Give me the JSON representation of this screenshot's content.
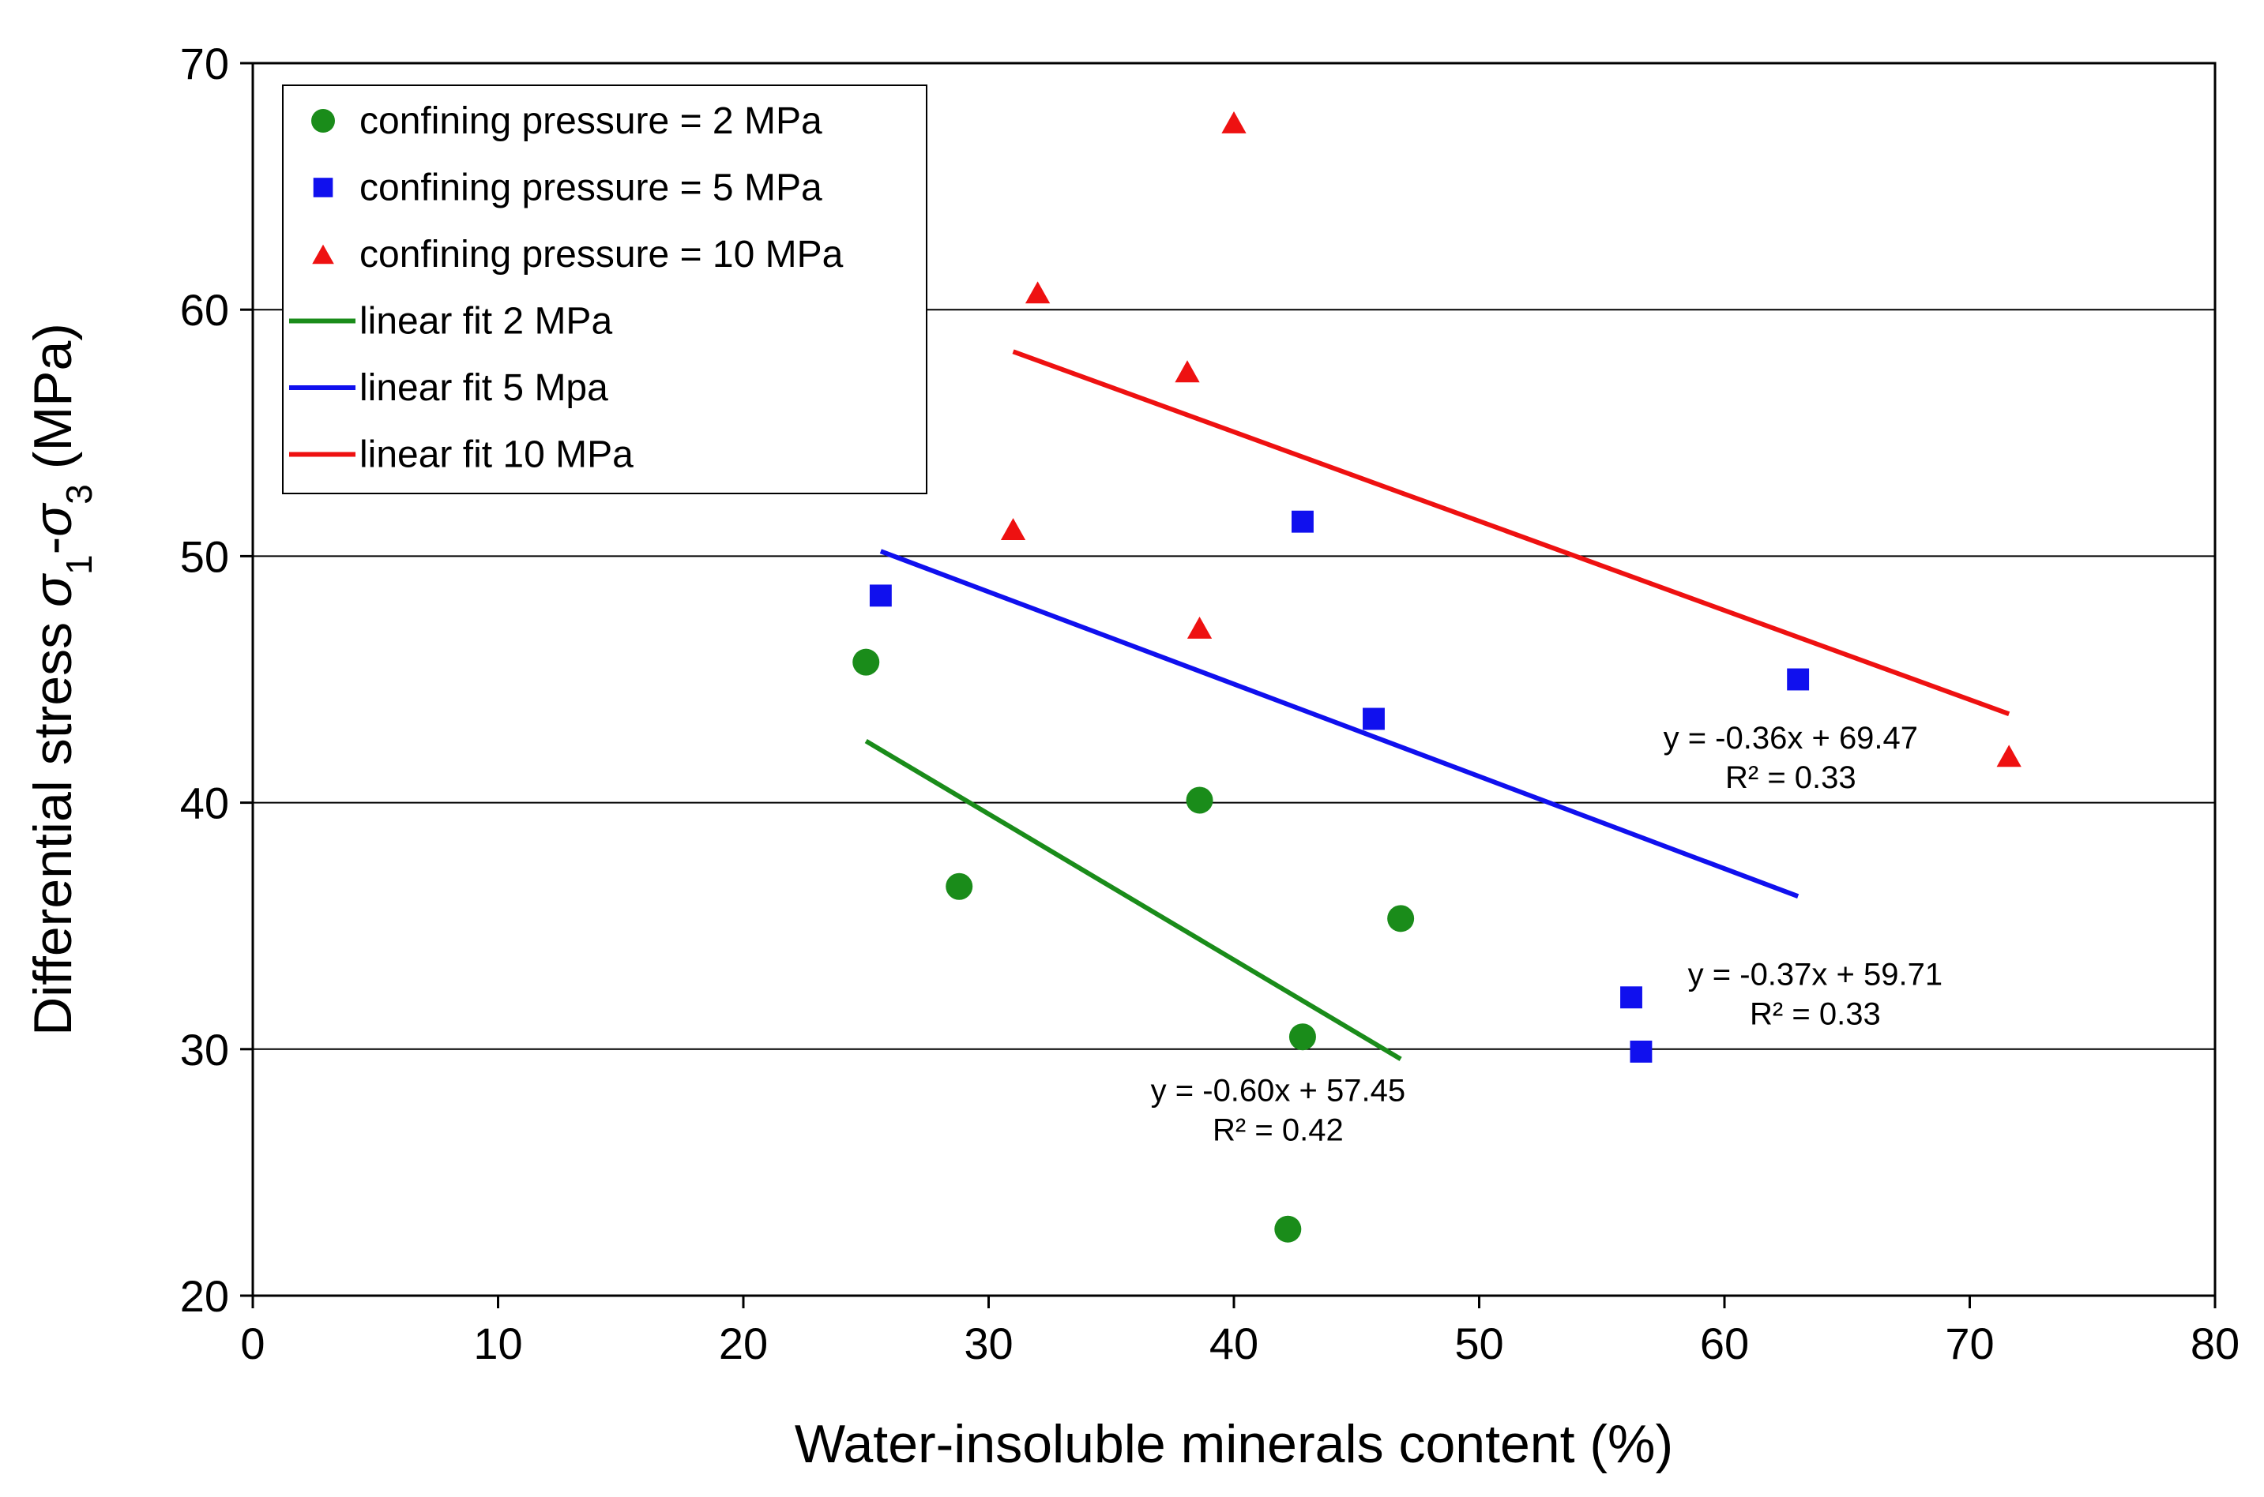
{
  "chart_data": {
    "type": "scatter",
    "title": "",
    "xlabel": "Water-insoluble minerals content (%)",
    "ylabel": "Differential stress σ1-σ3 (MPa)",
    "ylabel_parts": {
      "pre": "Differential stress ",
      "sigma": "σ",
      "sub1": "1",
      "dash": "-",
      "sub3": "3",
      "post": " (MPa)"
    },
    "xlim": [
      0,
      80
    ],
    "ylim": [
      20,
      70
    ],
    "xticks": [
      0,
      10,
      20,
      30,
      40,
      50,
      60,
      70,
      80
    ],
    "yticks": [
      20,
      30,
      40,
      50,
      60,
      70
    ],
    "grid": {
      "horizontal": true,
      "vertical": false
    },
    "legend_position": "top-left",
    "series": [
      {
        "name": "confining pressure = 2 MPa",
        "marker": "circle",
        "color": "#1a8c1a",
        "points": [
          {
            "x": 25.0,
            "y": 45.7
          },
          {
            "x": 28.8,
            "y": 36.6
          },
          {
            "x": 38.6,
            "y": 40.1
          },
          {
            "x": 42.8,
            "y": 30.5
          },
          {
            "x": 46.8,
            "y": 35.3
          },
          {
            "x": 42.2,
            "y": 22.7
          }
        ]
      },
      {
        "name": "confining pressure = 5 MPa",
        "marker": "square",
        "color": "#1010ee",
        "points": [
          {
            "x": 25.6,
            "y": 48.4
          },
          {
            "x": 42.8,
            "y": 51.4
          },
          {
            "x": 45.7,
            "y": 43.4
          },
          {
            "x": 63.0,
            "y": 45.0
          },
          {
            "x": 56.2,
            "y": 32.1
          },
          {
            "x": 56.6,
            "y": 29.9
          }
        ]
      },
      {
        "name": "confining pressure = 10 MPa",
        "marker": "triangle",
        "color": "#ee1111",
        "points": [
          {
            "x": 31.0,
            "y": 51.1
          },
          {
            "x": 32.0,
            "y": 60.7
          },
          {
            "x": 38.1,
            "y": 57.5
          },
          {
            "x": 38.6,
            "y": 47.1
          },
          {
            "x": 40.0,
            "y": 67.6
          },
          {
            "x": 71.6,
            "y": 41.9
          }
        ]
      }
    ],
    "fits": [
      {
        "name": "linear fit 2 MPa",
        "color": "#1a8c1a",
        "x_range": [
          25.0,
          46.8
        ],
        "y_range": [
          42.5,
          29.6
        ],
        "equation": "y = -0.60x + 57.45",
        "r2": "R² = 0.42",
        "label_at": {
          "x": 41.8,
          "y": 27.9
        }
      },
      {
        "name": "linear fit 5 Mpa",
        "color": "#1010ee",
        "x_range": [
          25.6,
          63.0
        ],
        "y_range": [
          50.2,
          36.2
        ],
        "equation": "y = -0.37x + 59.71",
        "r2": "R² = 0.33",
        "label_at": {
          "x": 63.7,
          "y": 32.6
        }
      },
      {
        "name": "linear fit 10 MPa",
        "color": "#ee1111",
        "x_range": [
          31.0,
          71.6
        ],
        "y_range": [
          58.3,
          43.6
        ],
        "equation": "y = -0.36x + 69.47",
        "r2": "R² = 0.33",
        "label_at": {
          "x": 62.7,
          "y": 42.2
        }
      }
    ]
  }
}
